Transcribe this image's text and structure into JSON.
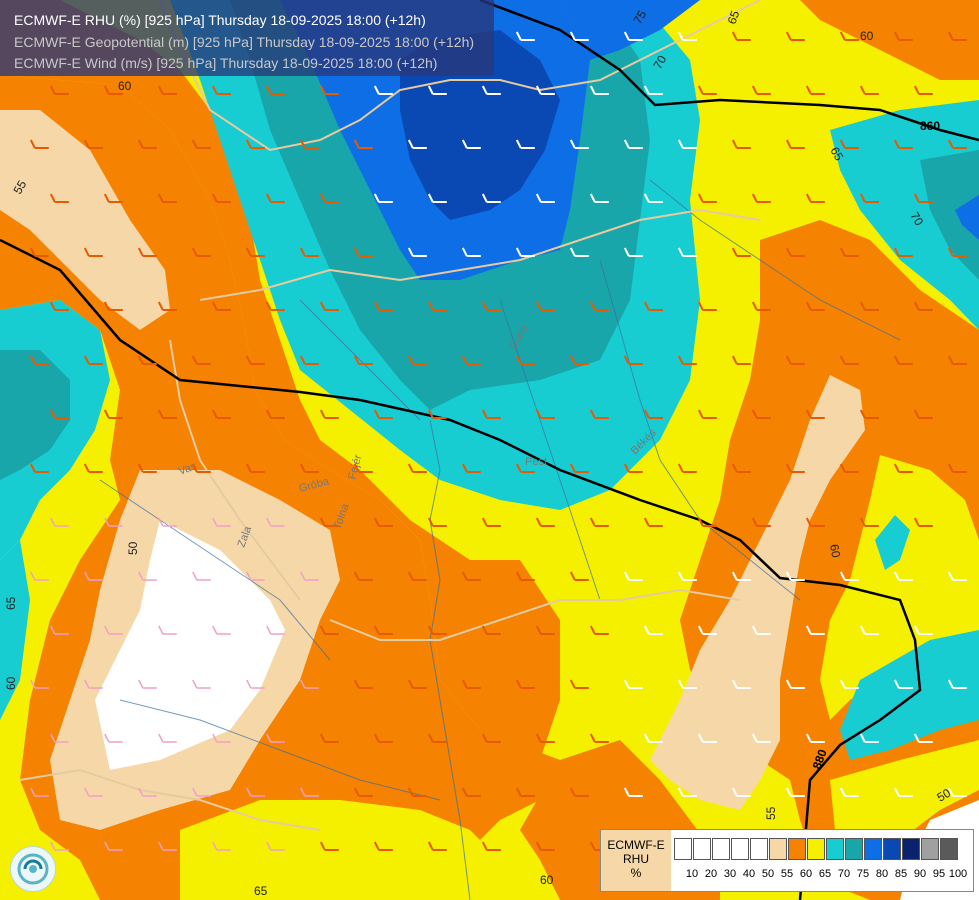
{
  "titles": {
    "line1": "ECMWF-E RHU (%) [925 hPa] Thursday 18-09-2025 18:00 (+12h)",
    "line2": "ECMWF-E Geopotential (m) [925 hPa] Thursday 18-09-2025 18:00 (+12h)",
    "line3": "ECMWF-E Wind (m/s) [925 hPa] Thursday 18-09-2025 18:00 (+12h)"
  },
  "legend": {
    "label_model": "ECMWF-E",
    "label_param": "RHU",
    "label_unit": "%",
    "tick_values": [
      "10",
      "20",
      "30",
      "40",
      "50",
      "55",
      "60",
      "65",
      "70",
      "75",
      "80",
      "85",
      "90",
      "95",
      "100"
    ],
    "colors": [
      "#ffffff",
      "#ffffff",
      "#ffffff",
      "#ffffff",
      "#ffffff",
      "#f6d8a8",
      "#f58200",
      "#f5f000",
      "#18cdd2",
      "#18a6aa",
      "#0d6ee6",
      "#0a48b4",
      "#0a236e",
      "#a0a0a0",
      "#5a5a5a"
    ]
  },
  "contour_labels": {
    "rhu": [
      "60",
      "55",
      "75",
      "65",
      "70",
      "60",
      "65",
      "70",
      "65",
      "60",
      "55",
      "50",
      "60",
      "65",
      "50",
      "60"
    ],
    "geopotential": [
      "860",
      "880"
    ]
  },
  "river_labels": [
    "Zala",
    "Vas",
    "Gróba",
    "Tolna",
    "Fejér",
    "Pest",
    "Békés",
    "Duna"
  ],
  "colors": {
    "rhu_lt50": "#ffffff",
    "rhu_50_55": "#f6d8a8",
    "rhu_55_60": "#f58200",
    "rhu_60_65": "#f5f000",
    "rhu_65_70": "#18cdd2",
    "rhu_70_75": "#18a6aa",
    "rhu_75_80": "#0d6ee6",
    "rhu_80_85": "#0a48b4",
    "border": "#e6caa0",
    "river": "#3c6ea0",
    "geopotential": "#000000",
    "wind_barb_orange": "#e85a00",
    "wind_barb_white": "#ffffff",
    "wind_barb_pink": "#f0a0c8"
  }
}
